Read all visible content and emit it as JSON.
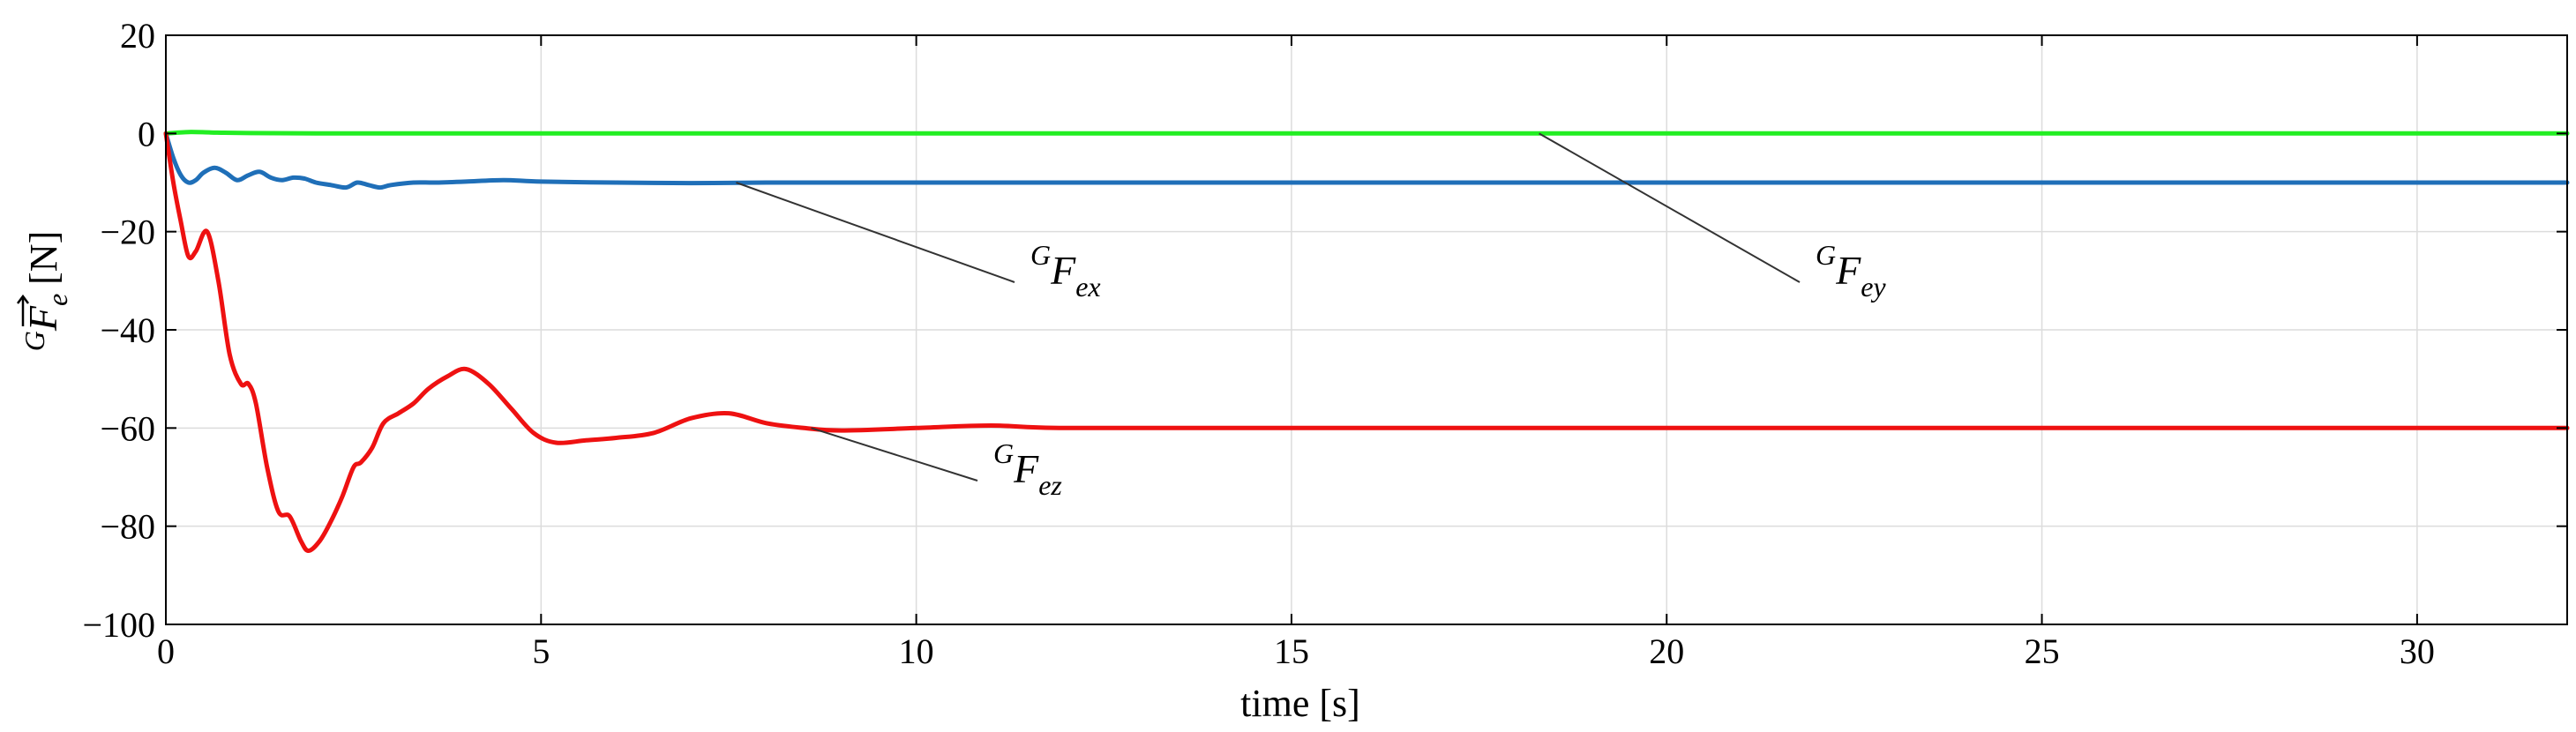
{
  "chart_data": {
    "type": "line",
    "xlabel": "time [s]",
    "ylabel": {
      "sup": "G",
      "main": "F",
      "sub": "e",
      "unit": "[N]",
      "vector_arrow": true
    },
    "xlim": [
      0,
      32
    ],
    "ylim": [
      -100,
      20
    ],
    "xticks": [
      0,
      5,
      10,
      15,
      20,
      25,
      30
    ],
    "yticks": [
      20,
      0,
      -20,
      -40,
      -60,
      -80,
      -100
    ],
    "xtick_labels": [
      "0",
      "5",
      "10",
      "15",
      "20",
      "25",
      "30"
    ],
    "ytick_labels": [
      "20",
      "0",
      "−20",
      "−40",
      "−60",
      "−80",
      "−100"
    ],
    "grid": true,
    "legend": "none",
    "series": [
      {
        "name_sup": "G",
        "name_main": "F",
        "name_sub": "ex",
        "color": "#1f6fb8",
        "x": [
          0,
          0.1,
          0.2,
          0.3,
          0.4,
          0.5,
          0.65,
          0.8,
          0.95,
          1.1,
          1.25,
          1.4,
          1.55,
          1.7,
          1.85,
          2.0,
          2.2,
          2.4,
          2.55,
          2.7,
          2.85,
          3.0,
          3.3,
          3.6,
          4.0,
          4.5,
          5.0,
          6.0,
          7.0,
          8.0,
          10.0,
          15.0,
          20.0,
          25.0,
          32.0
        ],
        "y": [
          0,
          -5,
          -8.5,
          -10,
          -9.5,
          -8,
          -7,
          -8,
          -9.5,
          -8.5,
          -7.8,
          -9,
          -9.5,
          -9,
          -9.2,
          -10,
          -10.5,
          -11,
          -10,
          -10.5,
          -11,
          -10.5,
          -10,
          -10,
          -9.8,
          -9.5,
          -9.8,
          -10,
          -10.1,
          -10,
          -10,
          -10,
          -10,
          -10,
          -10
        ]
      },
      {
        "name_sup": "G",
        "name_main": "F",
        "name_sub": "ey",
        "color": "#22ee22",
        "x": [
          0,
          0.3,
          0.6,
          1.0,
          2.0,
          5.0,
          10.0,
          15.0,
          20.0,
          25.0,
          32.0
        ],
        "y": [
          0,
          0.3,
          0.2,
          0.1,
          0,
          0,
          0,
          0,
          0,
          0,
          0
        ]
      },
      {
        "name_sup": "G",
        "name_main": "F",
        "name_sub": "ez",
        "color": "#ee1111",
        "x": [
          0,
          0.1,
          0.2,
          0.3,
          0.4,
          0.55,
          0.7,
          0.85,
          1.0,
          1.1,
          1.2,
          1.35,
          1.5,
          1.65,
          1.8,
          1.9,
          2.05,
          2.2,
          2.35,
          2.5,
          2.6,
          2.75,
          2.9,
          3.1,
          3.3,
          3.5,
          3.75,
          4.0,
          4.3,
          4.6,
          4.9,
          5.2,
          5.6,
          6.0,
          6.5,
          7.0,
          7.5,
          8.0,
          8.5,
          9.0,
          10.0,
          11.0,
          12.0,
          15.0,
          20.0,
          25.0,
          32.0
        ],
        "y": [
          0,
          -10,
          -18,
          -25,
          -24,
          -20,
          -30,
          -45,
          -51,
          -51,
          -55,
          -68,
          -77,
          -78,
          -83,
          -85,
          -83,
          -79,
          -74,
          -68,
          -67,
          -64,
          -59,
          -57,
          -55,
          -52,
          -49.5,
          -48,
          -51,
          -56,
          -61,
          -63,
          -62.5,
          -62,
          -61,
          -58,
          -57,
          -59,
          -60,
          -60.5,
          -60,
          -59.5,
          -60,
          -60,
          -60,
          -60,
          -60
        ]
      }
    ],
    "annotations": [
      {
        "sup": "G",
        "main": "F",
        "sub": "ex",
        "point": [
          7.6,
          -10
        ]
      },
      {
        "sup": "G",
        "main": "F",
        "sub": "ey",
        "point": [
          18.3,
          0
        ]
      },
      {
        "sup": "G",
        "main": "F",
        "sub": "ez",
        "point": [
          8.6,
          -60
        ]
      }
    ]
  }
}
